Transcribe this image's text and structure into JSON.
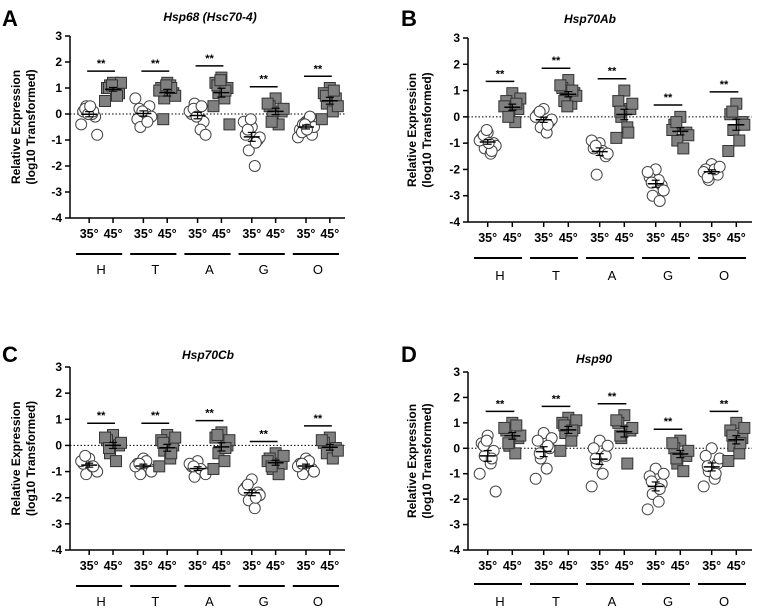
{
  "chart_data": [
    {
      "type": "scatter",
      "panel_letter": "A",
      "title": "Hsp68 (Hsc70-4)",
      "ylabel_line1": "Relative Expression",
      "ylabel_line2": "(log10 Transformed)",
      "ylim": [
        -4,
        3
      ],
      "yticks": [
        "3",
        "2",
        "1",
        "0",
        "-1",
        "-2",
        "-3",
        "-4"
      ],
      "temp_labels": [
        "35°",
        "45°"
      ],
      "groups": [
        "H",
        "T",
        "A",
        "G",
        "O"
      ],
      "significance": [
        "**",
        "**",
        "**",
        "**",
        "**"
      ],
      "series": [
        {
          "name": "35°",
          "marker": "open-circle",
          "color": "#ffffff",
          "values": [
            [
              0.2,
              0.1,
              -0.1,
              0.3,
              0.0,
              -0.4,
              -0.8,
              0.2,
              0.1,
              0.0,
              0.3
            ],
            [
              0.1,
              -0.2,
              0.3,
              -0.5,
              0.0,
              0.6,
              -0.1,
              0.2,
              -0.3,
              0.1
            ],
            [
              0.2,
              0.0,
              -0.3,
              0.4,
              -0.6,
              0.1,
              -0.8,
              0.2,
              0.3,
              -0.1
            ],
            [
              -0.5,
              -0.8,
              -1.0,
              -1.4,
              -2.0,
              -0.3,
              -0.9,
              -0.6,
              -1.1,
              -0.2
            ],
            [
              -0.3,
              -0.6,
              -0.8,
              -0.4,
              -0.2,
              -0.9,
              -0.5,
              -0.7,
              -0.1,
              -0.4,
              -0.6
            ]
          ]
        },
        {
          "name": "45°",
          "marker": "filled-square",
          "color": "#808080",
          "values": [
            [
              1.2,
              1.0,
              0.8,
              1.1,
              0.9,
              0.5,
              1.2,
              1.0,
              0.7,
              1.1
            ],
            [
              1.2,
              1.0,
              0.8,
              0.6,
              1.1,
              0.9,
              0.7,
              -0.2,
              1.0,
              1.1
            ],
            [
              1.4,
              1.2,
              1.0,
              0.8,
              0.6,
              0.3,
              -0.4,
              1.1,
              0.9,
              1.3
            ],
            [
              0.6,
              0.3,
              0.1,
              -0.1,
              -0.4,
              0.4,
              0.2,
              -0.3
            ],
            [
              1.0,
              0.8,
              0.6,
              0.4,
              0.1,
              -0.2,
              0.3,
              0.7,
              0.9
            ]
          ]
        }
      ]
    },
    {
      "type": "scatter",
      "panel_letter": "B",
      "title": "Hsp70Ab",
      "ylabel_line1": "Relative Expression",
      "ylabel_line2": "(log10 Transformed)",
      "ylim": [
        -4,
        3
      ],
      "yticks": [
        "3",
        "2",
        "1",
        "0",
        "-1",
        "-2",
        "-3",
        "-4"
      ],
      "temp_labels": [
        "35°",
        "45°"
      ],
      "groups": [
        "H",
        "T",
        "A",
        "G",
        "O"
      ],
      "significance": [
        "**",
        "**",
        "**",
        "**",
        "**"
      ],
      "series": [
        {
          "name": "35°",
          "marker": "open-circle",
          "color": "#ffffff",
          "values": [
            [
              -0.6,
              -0.8,
              -1.0,
              -1.2,
              -1.4,
              -0.9,
              -1.1,
              -0.7,
              -1.3,
              -0.5,
              -1.0
            ],
            [
              0.3,
              0.1,
              -0.2,
              -0.4,
              -0.6,
              0.0,
              -0.1,
              0.2,
              -0.3
            ],
            [
              -1.0,
              -1.2,
              -1.5,
              -2.2,
              -1.3,
              -0.9,
              -1.4,
              -1.1
            ],
            [
              -2.0,
              -2.3,
              -2.6,
              -3.0,
              -2.4,
              -2.1,
              -2.8,
              -2.5,
              -3.2
            ],
            [
              -1.8,
              -2.0,
              -2.2,
              -2.4,
              -2.0,
              -2.1,
              -1.9,
              -2.3
            ]
          ]
        },
        {
          "name": "45°",
          "marker": "filled-square",
          "color": "#808080",
          "values": [
            [
              0.9,
              0.6,
              0.3,
              0.1,
              -0.2,
              0.4,
              0.7,
              0.0,
              0.5
            ],
            [
              1.4,
              1.1,
              0.9,
              0.7,
              0.5,
              1.2,
              0.8,
              0.6,
              1.0,
              0.4
            ],
            [
              1.0,
              0.6,
              0.3,
              0.0,
              -0.4,
              -0.8,
              0.5,
              0.2,
              -0.6
            ],
            [
              0.0,
              -0.3,
              -0.6,
              -0.9,
              -1.2,
              -0.5,
              -0.7,
              -0.2
            ],
            [
              0.5,
              0.1,
              -0.2,
              -0.5,
              -0.9,
              -1.3,
              -0.3,
              0.2
            ]
          ]
        }
      ]
    },
    {
      "type": "scatter",
      "panel_letter": "C",
      "title": "Hsp70Cb",
      "ylabel_line1": "Relative Expression",
      "ylabel_line2": "(log10 Transformed)",
      "ylim": [
        -4,
        3
      ],
      "yticks": [
        "3",
        "2",
        "1",
        "0",
        "-1",
        "-2",
        "-3",
        "-4"
      ],
      "temp_labels": [
        "35°",
        "45°"
      ],
      "groups": [
        "H",
        "T",
        "A",
        "G",
        "O"
      ],
      "significance": [
        "**",
        "**",
        "**",
        "**",
        "**"
      ],
      "series": [
        {
          "name": "35°",
          "marker": "open-circle",
          "color": "#ffffff",
          "values": [
            [
              -0.5,
              -0.7,
              -0.9,
              -1.1,
              -0.8,
              -0.6,
              -1.0,
              -0.4,
              -0.8
            ],
            [
              -0.5,
              -0.7,
              -0.9,
              -1.1,
              -0.6,
              -0.8,
              -1.0,
              -0.7
            ],
            [
              -0.6,
              -0.8,
              -1.0,
              -1.2,
              -0.9,
              -0.7,
              -1.1,
              -0.8
            ],
            [
              -1.3,
              -1.6,
              -1.8,
              -2.1,
              -2.4,
              -1.7,
              -1.9,
              -1.5,
              -2.0
            ],
            [
              -0.5,
              -0.7,
              -0.9,
              -1.1,
              -0.6,
              -0.8,
              -1.0,
              -0.7
            ]
          ]
        },
        {
          "name": "45°",
          "marker": "filled-square",
          "color": "#808080",
          "values": [
            [
              0.4,
              0.2,
              0.0,
              -0.3,
              -0.6,
              0.3,
              0.1,
              -0.1
            ],
            [
              0.4,
              0.2,
              0.0,
              -0.2,
              -0.5,
              -0.8,
              0.3,
              0.1,
              -0.3
            ],
            [
              0.5,
              0.3,
              0.0,
              -0.3,
              -0.6,
              -0.9,
              0.2,
              0.4,
              -0.1
            ],
            [
              -0.3,
              -0.5,
              -0.7,
              -0.9,
              -1.1,
              -0.6,
              -0.4,
              -0.8
            ],
            [
              0.3,
              0.1,
              -0.1,
              -0.3,
              -0.5,
              0.2,
              -0.2
            ]
          ]
        }
      ]
    },
    {
      "type": "scatter",
      "panel_letter": "D",
      "title": "Hsp90",
      "ylabel_line1": "Relative Expression",
      "ylabel_line2": "(log10 Transformed)",
      "ylim": [
        -4,
        3
      ],
      "yticks": [
        "3",
        "2",
        "1",
        "0",
        "-1",
        "-2",
        "-3",
        "-4"
      ],
      "temp_labels": [
        "35°",
        "45°"
      ],
      "groups": [
        "H",
        "T",
        "A",
        "G",
        "O"
      ],
      "significance": [
        "**",
        "**",
        "**",
        "**",
        "**"
      ],
      "series": [
        {
          "name": "35°",
          "marker": "open-circle",
          "color": "#ffffff",
          "values": [
            [
              0.5,
              0.2,
              -0.1,
              -0.3,
              -0.6,
              -1.0,
              -1.7,
              0.1,
              -0.4,
              0.3
            ],
            [
              0.6,
              0.3,
              0.0,
              -0.4,
              -0.8,
              -1.2,
              0.4,
              -0.2,
              0.1
            ],
            [
              0.3,
              0.0,
              -0.3,
              -0.6,
              -1.0,
              -1.5,
              0.1,
              -0.4
            ],
            [
              -0.8,
              -1.1,
              -1.4,
              -1.8,
              -2.1,
              -2.4,
              -1.0,
              -1.3,
              -1.6
            ],
            [
              0.0,
              -0.3,
              -0.6,
              -0.9,
              -1.2,
              -1.5,
              -0.4,
              -0.7,
              -1.0
            ]
          ]
        },
        {
          "name": "45°",
          "marker": "filled-square",
          "color": "#808080",
          "values": [
            [
              1.0,
              0.7,
              0.4,
              0.1,
              -0.2,
              0.8,
              0.5,
              0.2,
              0.9
            ],
            [
              1.2,
              1.0,
              0.8,
              0.6,
              0.3,
              -0.1,
              1.1,
              0.9,
              0.7
            ],
            [
              1.3,
              1.0,
              0.7,
              0.4,
              -0.6,
              1.1,
              0.8,
              0.5
            ],
            [
              0.3,
              0.0,
              -0.3,
              -0.6,
              -0.9,
              0.2,
              -0.1,
              -0.4
            ],
            [
              1.0,
              0.7,
              0.4,
              0.1,
              -0.2,
              -0.5,
              0.8,
              0.5,
              0.2
            ]
          ]
        }
      ]
    }
  ]
}
